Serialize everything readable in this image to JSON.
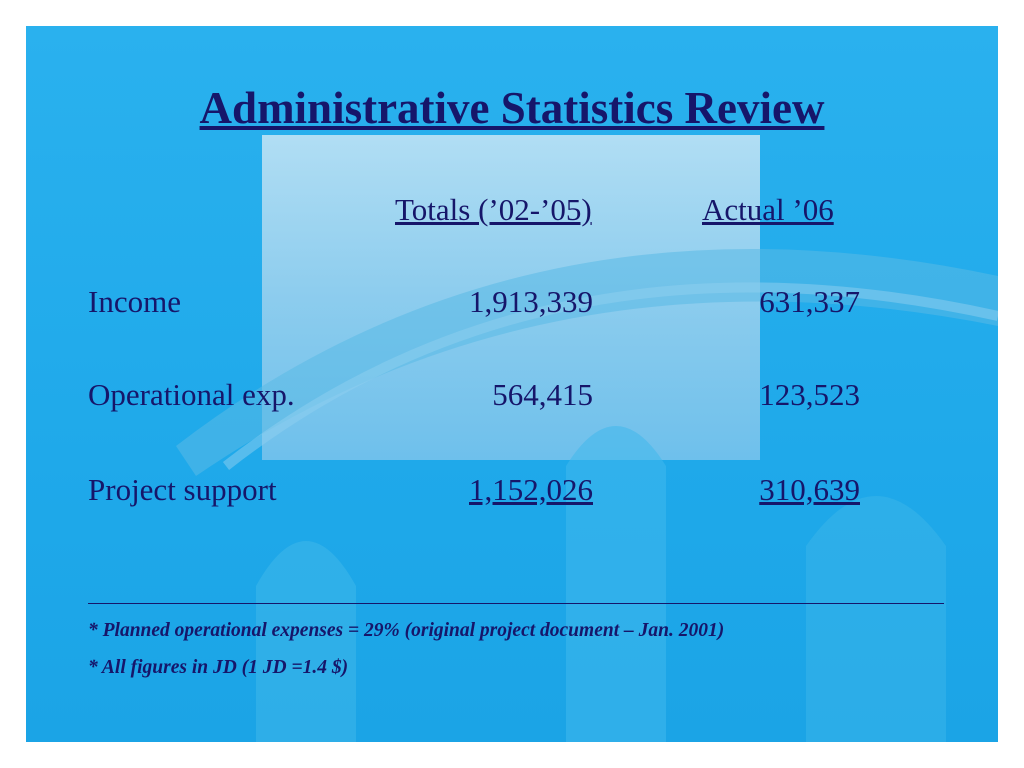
{
  "title": "Administrative Statistics Review",
  "table": {
    "headers": [
      "Totals (’02-’05)",
      "Actual ’06"
    ],
    "rows": [
      [
        "Income",
        "1,913,339",
        "631,337"
      ],
      [
        "Operational exp.",
        "564,415",
        "123,523"
      ],
      [
        "Project support",
        "1,152,026",
        "310,639"
      ]
    ]
  },
  "notes": [
    "* Planned operational expenses = 29% (original project document – Jan. 2001)",
    "* All figures in JD (1 JD =1.4 $)"
  ]
}
